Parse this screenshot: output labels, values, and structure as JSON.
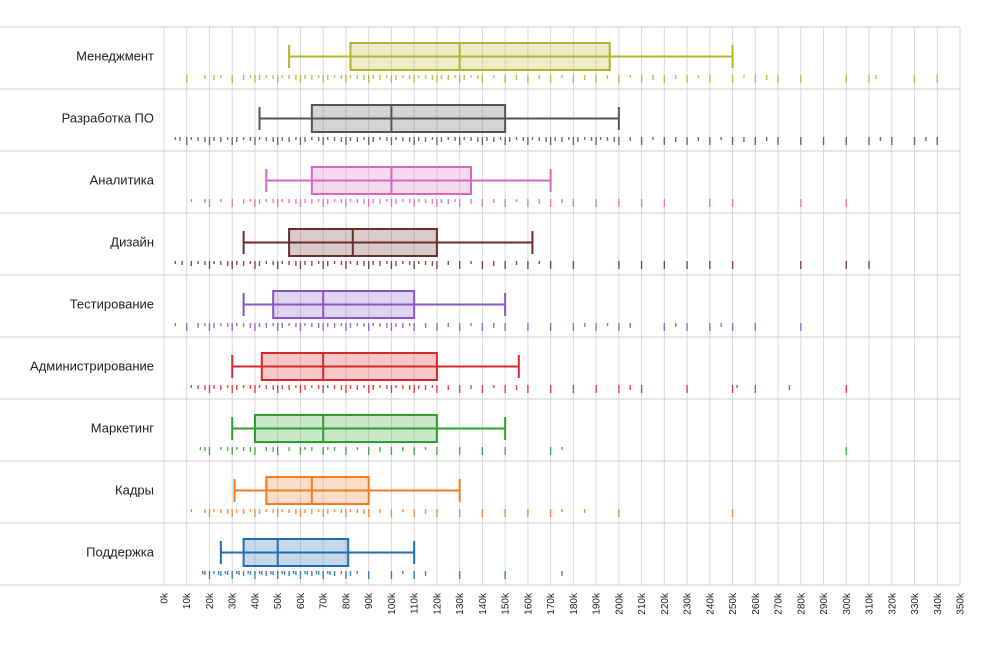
{
  "chart_data": {
    "type": "box",
    "orientation": "horizontal",
    "x_unit": "k",
    "xlim": [
      0,
      350
    ],
    "x_tick_step": 10,
    "x_tick_labels": [
      "0k",
      "10k",
      "20k",
      "30k",
      "40k",
      "50k",
      "60k",
      "70k",
      "80k",
      "90k",
      "100k",
      "110k",
      "120k",
      "130k",
      "140k",
      "150k",
      "160k",
      "170k",
      "180k",
      "190k",
      "200k",
      "210k",
      "220k",
      "230k",
      "240k",
      "250k",
      "260k",
      "270k",
      "280k",
      "290k",
      "300k",
      "310k",
      "320k",
      "330k",
      "340k",
      "350k"
    ],
    "grid": true,
    "legend": "none",
    "categories": [
      {
        "name": "Менеджмент",
        "color": "#b5b32a",
        "whisker_low": 55,
        "q1": 82,
        "median": 130,
        "q3": 196,
        "whisker_high": 250,
        "rug": [
          10,
          18,
          22,
          25,
          30,
          35,
          38,
          40,
          42,
          45,
          48,
          50,
          52,
          55,
          58,
          60,
          62,
          65,
          68,
          70,
          72,
          75,
          78,
          80,
          82,
          85,
          88,
          90,
          92,
          95,
          98,
          100,
          102,
          105,
          108,
          110,
          112,
          115,
          118,
          120,
          122,
          125,
          128,
          130,
          132,
          135,
          138,
          140,
          145,
          150,
          155,
          160,
          165,
          170,
          175,
          180,
          185,
          190,
          195,
          200,
          205,
          210,
          215,
          220,
          225,
          230,
          235,
          240,
          250,
          255,
          260,
          265,
          270,
          280,
          300,
          310,
          313,
          330,
          340
        ]
      },
      {
        "name": "Разработка ПО",
        "color": "#555555",
        "whisker_low": 42,
        "q1": 65,
        "median": 100,
        "q3": 150,
        "whisker_high": 200,
        "rug": [
          5,
          7,
          10,
          12,
          15,
          18,
          20,
          22,
          25,
          28,
          30,
          32,
          35,
          38,
          40,
          42,
          45,
          48,
          50,
          52,
          55,
          58,
          60,
          62,
          65,
          68,
          70,
          72,
          75,
          78,
          80,
          82,
          85,
          88,
          90,
          92,
          95,
          98,
          100,
          102,
          105,
          108,
          110,
          112,
          115,
          118,
          120,
          122,
          125,
          128,
          130,
          132,
          135,
          138,
          140,
          142,
          145,
          148,
          150,
          152,
          155,
          158,
          160,
          162,
          165,
          168,
          170,
          172,
          175,
          178,
          180,
          182,
          185,
          188,
          190,
          192,
          195,
          198,
          200,
          205,
          210,
          215,
          220,
          225,
          230,
          235,
          240,
          245,
          250,
          255,
          260,
          265,
          270,
          280,
          290,
          300,
          310,
          315,
          320,
          330,
          335,
          340
        ]
      },
      {
        "name": "Аналитика",
        "color": "#d966c0",
        "whisker_low": 45,
        "q1": 65,
        "median": 100,
        "q3": 135,
        "whisker_high": 170,
        "rug": [
          12,
          18,
          20,
          25,
          30,
          35,
          38,
          40,
          42,
          45,
          48,
          50,
          52,
          55,
          58,
          60,
          62,
          65,
          68,
          70,
          72,
          75,
          78,
          80,
          82,
          85,
          88,
          90,
          92,
          95,
          98,
          100,
          102,
          105,
          108,
          110,
          112,
          115,
          118,
          120,
          122,
          125,
          128,
          130,
          135,
          140,
          145,
          150,
          155,
          160,
          165,
          170,
          175,
          180,
          190,
          200,
          210,
          220,
          240,
          250,
          280,
          300
        ]
      },
      {
        "name": "Дизайн",
        "color": "#6b2c2a",
        "whisker_low": 35,
        "q1": 55,
        "median": 83,
        "q3": 120,
        "whisker_high": 162,
        "rug": [
          5,
          8,
          12,
          15,
          18,
          20,
          22,
          25,
          28,
          30,
          32,
          35,
          38,
          40,
          42,
          45,
          48,
          50,
          52,
          55,
          58,
          60,
          62,
          65,
          68,
          70,
          72,
          75,
          78,
          80,
          82,
          85,
          88,
          90,
          92,
          95,
          98,
          100,
          102,
          105,
          108,
          110,
          112,
          115,
          118,
          120,
          125,
          130,
          135,
          140,
          145,
          150,
          155,
          160,
          165,
          170,
          180,
          200,
          210,
          220,
          230,
          240,
          250,
          280,
          300,
          310
        ]
      },
      {
        "name": "Тестирование",
        "color": "#8855c4",
        "whisker_low": 35,
        "q1": 48,
        "median": 70,
        "q3": 110,
        "whisker_high": 150,
        "rug": [
          5,
          10,
          15,
          18,
          20,
          22,
          25,
          28,
          30,
          32,
          35,
          38,
          40,
          42,
          45,
          48,
          50,
          52,
          55,
          58,
          60,
          62,
          65,
          68,
          70,
          72,
          75,
          78,
          80,
          82,
          85,
          88,
          90,
          92,
          95,
          98,
          100,
          102,
          105,
          108,
          110,
          115,
          120,
          125,
          130,
          135,
          140,
          145,
          150,
          160,
          170,
          180,
          185,
          190,
          195,
          200,
          205,
          220,
          225,
          230,
          240,
          245,
          250,
          260,
          280
        ]
      },
      {
        "name": "Администрирование",
        "color": "#d9272c",
        "whisker_low": 30,
        "q1": 43,
        "median": 70,
        "q3": 120,
        "whisker_high": 156,
        "rug": [
          12,
          15,
          18,
          20,
          22,
          25,
          28,
          30,
          32,
          35,
          38,
          40,
          42,
          45,
          48,
          50,
          52,
          55,
          58,
          60,
          62,
          65,
          68,
          70,
          72,
          75,
          78,
          80,
          82,
          85,
          88,
          90,
          92,
          95,
          98,
          100,
          102,
          105,
          108,
          110,
          112,
          115,
          118,
          120,
          125,
          130,
          135,
          140,
          145,
          150,
          155,
          160,
          170,
          180,
          190,
          200,
          205,
          210,
          230,
          250,
          252,
          260,
          275,
          300
        ]
      },
      {
        "name": "Маркетинг",
        "color": "#2ca02c",
        "whisker_low": 30,
        "q1": 40,
        "median": 70,
        "q3": 120,
        "whisker_high": 150,
        "rug": [
          16,
          18,
          20,
          25,
          28,
          30,
          32,
          35,
          38,
          40,
          45,
          48,
          50,
          55,
          60,
          62,
          65,
          70,
          72,
          75,
          80,
          85,
          90,
          95,
          100,
          105,
          110,
          115,
          120,
          130,
          140,
          150,
          170,
          175,
          300
        ]
      },
      {
        "name": "Кадры",
        "color": "#f27b24",
        "whisker_low": 31,
        "q1": 45,
        "median": 65,
        "q3": 90,
        "whisker_high": 130,
        "rug": [
          12,
          18,
          20,
          22,
          25,
          28,
          30,
          32,
          35,
          38,
          40,
          42,
          45,
          48,
          50,
          52,
          55,
          58,
          60,
          62,
          65,
          68,
          70,
          72,
          75,
          78,
          80,
          82,
          85,
          88,
          90,
          95,
          100,
          105,
          110,
          115,
          120,
          130,
          140,
          150,
          160,
          170,
          175,
          185,
          200,
          250
        ]
      },
      {
        "name": "Поддержка",
        "color": "#1f6db4",
        "whisker_low": 25,
        "q1": 35,
        "median": 50,
        "q3": 81,
        "whisker_high": 110,
        "rug": [
          17,
          18,
          20,
          22,
          24,
          25,
          27,
          28,
          30,
          32,
          33,
          35,
          37,
          38,
          40,
          42,
          43,
          45,
          47,
          48,
          50,
          52,
          53,
          55,
          57,
          58,
          60,
          62,
          63,
          65,
          67,
          68,
          70,
          72,
          73,
          75,
          78,
          80,
          82,
          85,
          90,
          100,
          105,
          110,
          115,
          130,
          150,
          175
        ]
      }
    ]
  }
}
